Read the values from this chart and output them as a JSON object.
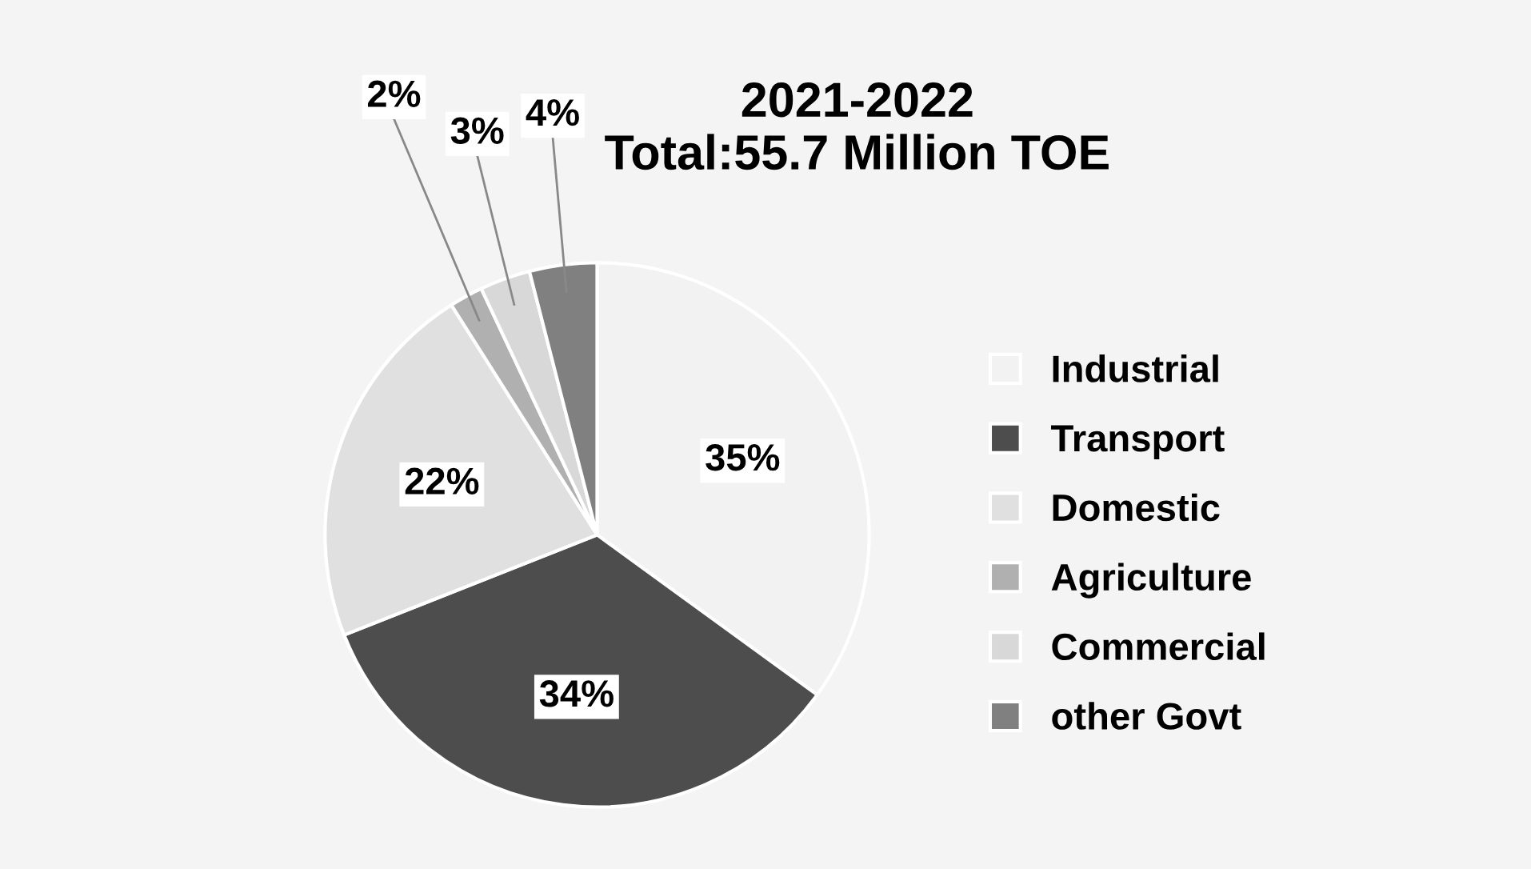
{
  "chart_data": {
    "type": "pie",
    "title": "2021-2022\nTotal:55.7 Million TOE",
    "categories": [
      "Industrial",
      "Transport",
      "Domestic",
      "Agriculture",
      "Commercial",
      "other Govt"
    ],
    "values": [
      35,
      34,
      22,
      2,
      3,
      4
    ],
    "colors": [
      "#f2f2f2",
      "#4d4d4d",
      "#e0e0e0",
      "#b0b0b0",
      "#d8d8d8",
      "#808080"
    ],
    "value_labels": [
      "35%",
      "34%",
      "22%",
      "2%",
      "3%",
      "4%"
    ],
    "legend": "right"
  }
}
